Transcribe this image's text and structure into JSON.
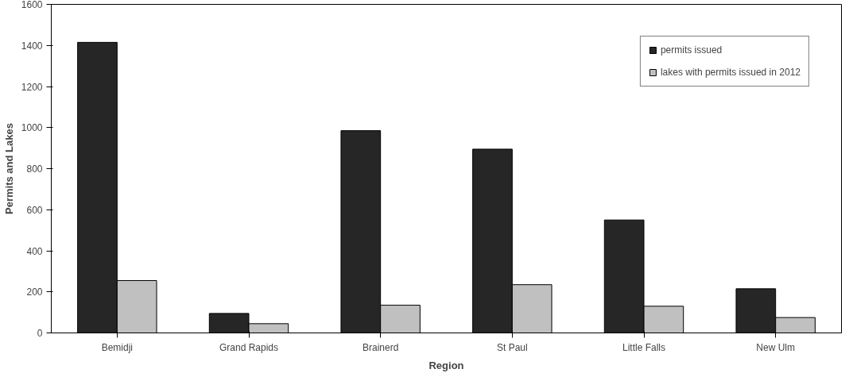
{
  "chart_data": {
    "type": "bar",
    "xlabel": "Region",
    "ylabel": "Permits and Lakes",
    "categories": [
      "Bemidji",
      "Grand Rapids",
      "Brainerd",
      "St Paul",
      "Little Falls",
      "New Ulm"
    ],
    "series": [
      {
        "name": "permits issued",
        "color": "#262626",
        "values": [
          1415,
          95,
          985,
          895,
          550,
          215
        ]
      },
      {
        "name": "lakes with permits issued in 2012",
        "color": "#c0c0c0",
        "values": [
          255,
          45,
          135,
          235,
          130,
          75
        ]
      }
    ],
    "ylim": [
      0,
      1600
    ],
    "yticks": [
      0,
      200,
      400,
      600,
      800,
      1000,
      1200,
      1400,
      1600
    ],
    "grid": false,
    "legend": "top right"
  }
}
